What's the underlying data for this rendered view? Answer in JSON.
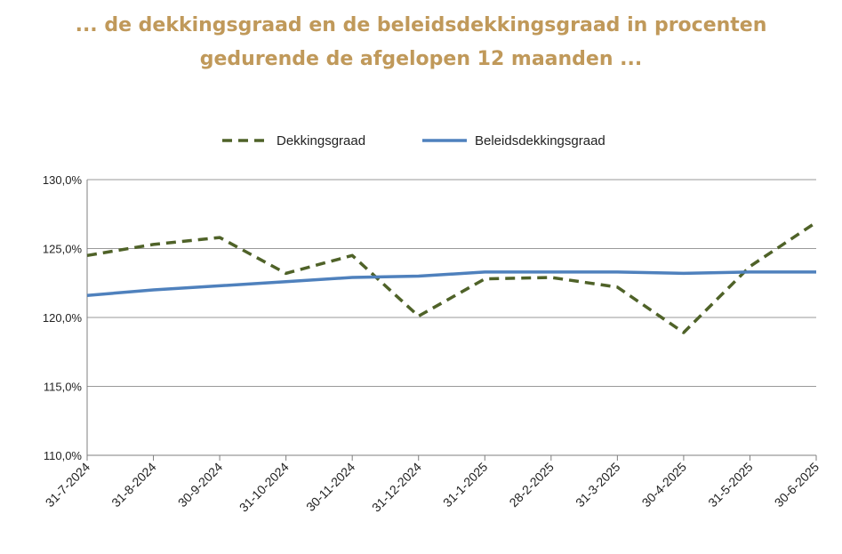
{
  "chart_data": {
    "type": "line",
    "title": "... de dekkingsgraad en de beleidsdekkingsgraad in procenten",
    "subtitle": "gedurende de afgelopen 12 maanden ...",
    "categories": [
      "31-7-2024",
      "31-8-2024",
      "30-9-2024",
      "31-10-2024",
      "30-11-2024",
      "31-12-2024",
      "31-1-2025",
      "28-2-2025",
      "31-3-2025",
      "30-4-2025",
      "31-5-2025",
      "30-6-2025"
    ],
    "ylim": [
      110,
      130
    ],
    "yticks": [
      110,
      115,
      120,
      125,
      130
    ],
    "ytick_labels": [
      "110,0%",
      "115,0%",
      "120,0%",
      "125,0%",
      "130,0%"
    ],
    "grid": true,
    "legend_position": "top",
    "series": [
      {
        "name": "Dekkingsgraad",
        "values": [
          124.5,
          125.3,
          125.8,
          123.2,
          124.5,
          120.1,
          122.8,
          122.9,
          122.2,
          118.9,
          123.7,
          126.9
        ],
        "color": "#4f6228",
        "style": "dashed"
      },
      {
        "name": "Beleidsdekkingsgraad",
        "values": [
          121.6,
          122.0,
          122.3,
          122.6,
          122.9,
          123.0,
          123.3,
          123.3,
          123.3,
          123.2,
          123.3,
          123.3
        ],
        "color": "#4f81bd",
        "style": "solid"
      }
    ]
  }
}
